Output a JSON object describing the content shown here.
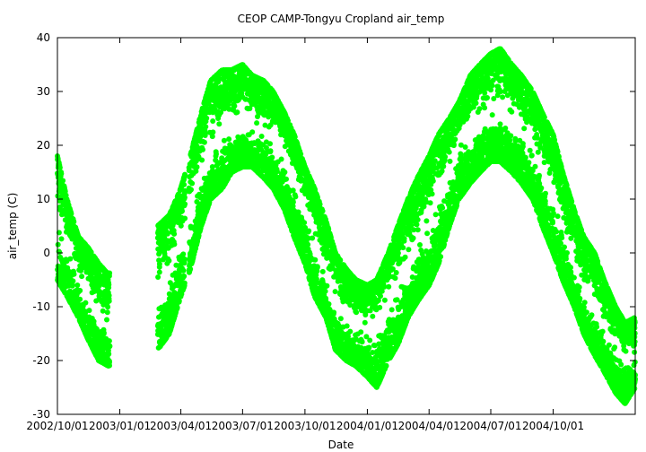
{
  "chart_data": {
    "type": "scatter",
    "title": "CEOP CAMP-Tongyu Cropland  air_temp",
    "xlabel": "Date",
    "ylabel": "air_temp (C)",
    "ylim": [
      -30,
      40
    ],
    "xlim": [
      "2002-10-01",
      "2005-01-30"
    ],
    "yticks": [
      -30,
      -20,
      -10,
      0,
      10,
      20,
      30,
      40
    ],
    "xticks": [
      "2002/10/01",
      "2003/01/01",
      "2003/04/01",
      "2003/07/01",
      "2003/10/01",
      "2004/01/01",
      "2004/04/01",
      "2004/07/01",
      "2004/10/01"
    ],
    "xtick_labels": [
      "2002/10/01",
      "2003/01/01",
      "2003/04/01",
      "2003/07/01",
      "2003/10/01",
      "2004/01/01",
      "2004/04/01",
      "2004/07/01",
      "2004/10/01"
    ],
    "grid": false,
    "legend": "none",
    "color": "#00ff00",
    "series": [
      {
        "gaps": [
          [
            "2002-12-17",
            "2003-02-26"
          ],
          [
            "2003-04-07",
            "2003-04-13"
          ]
        ],
        "x": [
          "2002-10-01",
          "2002-10-15",
          "2002-11-01",
          "2002-11-15",
          "2002-12-01",
          "2002-12-15",
          "2003-02-26",
          "2003-03-15",
          "2003-04-01",
          "2003-04-15",
          "2003-05-01",
          "2003-05-15",
          "2003-06-01",
          "2003-06-15",
          "2003-07-01",
          "2003-07-15",
          "2003-08-01",
          "2003-08-15",
          "2003-09-01",
          "2003-09-15",
          "2003-10-01",
          "2003-10-15",
          "2003-11-01",
          "2003-11-15",
          "2003-12-01",
          "2003-12-15",
          "2004-01-01",
          "2004-01-15",
          "2004-02-01",
          "2004-02-15",
          "2004-03-01",
          "2004-03-15",
          "2004-04-01",
          "2004-04-15",
          "2004-05-01",
          "2004-05-15",
          "2004-06-01",
          "2004-06-15",
          "2004-07-01",
          "2004-07-15",
          "2004-08-01",
          "2004-08-15",
          "2004-09-01",
          "2004-09-15",
          "2004-10-01",
          "2004-10-15",
          "2004-11-01",
          "2004-11-15",
          "2004-12-01",
          "2004-12-15",
          "2005-01-01",
          "2005-01-15",
          "2005-01-30"
        ],
        "y_mean": [
          7,
          2,
          -4,
          -8,
          -12,
          -14,
          -8,
          -4,
          3,
          7,
          15,
          20,
          22,
          23,
          24,
          24,
          23,
          21,
          18,
          13,
          8,
          2,
          -4,
          -10,
          -12,
          -13,
          -14,
          -13,
          -10,
          -6,
          -2,
          2,
          6,
          10,
          15,
          20,
          23,
          25,
          26,
          26,
          25,
          23,
          20,
          16,
          10,
          5,
          -2,
          -7,
          -11,
          -14,
          -17,
          -19,
          -19
        ],
        "y_min": [
          -5,
          -8,
          -12,
          -16,
          -20,
          -21,
          -18,
          -15,
          -8,
          -3,
          5,
          10,
          12,
          15,
          16,
          16,
          14,
          12,
          8,
          3,
          -2,
          -8,
          -12,
          -18,
          -20,
          -21,
          -23,
          -25,
          -20,
          -17,
          -12,
          -9,
          -6,
          -2,
          5,
          10,
          13,
          15,
          17,
          17,
          15,
          13,
          10,
          5,
          0,
          -5,
          -10,
          -15,
          -19,
          -22,
          -26,
          -28,
          -25
        ],
        "y_max": [
          18,
          10,
          3,
          1,
          -2,
          -4,
          5,
          7,
          12,
          18,
          26,
          32,
          34,
          34,
          35,
          33,
          32,
          30,
          26,
          22,
          16,
          12,
          6,
          0,
          -3,
          -5,
          -6,
          -5,
          0,
          5,
          10,
          14,
          18,
          22,
          25,
          28,
          33,
          35,
          37,
          38,
          35,
          33,
          30,
          26,
          22,
          15,
          8,
          3,
          0,
          -5,
          -10,
          -13,
          -12
        ]
      }
    ]
  }
}
